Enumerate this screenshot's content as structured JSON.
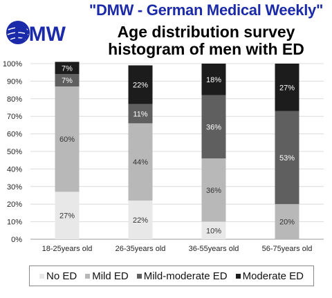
{
  "header": {
    "publisher": "\"DMW - German Medical Weekly\"",
    "logo_text": "DMW",
    "title": "Age distribution survey histogram of men with ED"
  },
  "chart_data": {
    "type": "bar",
    "stacked": true,
    "categories": [
      "18-25years old",
      "26-35years old",
      "36-55years old",
      "56-75years old"
    ],
    "series": [
      {
        "name": "No ED",
        "color": "#e8e8e8",
        "values": [
          27,
          22,
          10,
          0
        ]
      },
      {
        "name": "Mild ED",
        "color": "#b8b8b8",
        "values": [
          60,
          44,
          36,
          20
        ]
      },
      {
        "name": "Mild-moderate ED",
        "color": "#5f5f5f",
        "values": [
          7,
          11,
          36,
          53
        ]
      },
      {
        "name": "Moderate ED",
        "color": "#1c1c1c",
        "values": [
          7,
          22,
          18,
          27
        ]
      }
    ],
    "data_labels": [
      [
        "27%",
        "22%",
        "10%",
        null
      ],
      [
        "60%",
        "44%",
        "36%",
        "20%"
      ],
      [
        "7%",
        "11%",
        "36%",
        "53%"
      ],
      [
        "7%",
        "22%",
        "18%",
        "27%"
      ]
    ],
    "label_colors": [
      "#333333",
      "#333333",
      "#ffffff",
      "#ffffff"
    ],
    "ylim": [
      0,
      100
    ],
    "yticks": [
      0,
      10,
      20,
      30,
      40,
      50,
      60,
      70,
      80,
      90,
      100
    ],
    "ytick_suffix": "%",
    "grid": true,
    "legend_position": "bottom"
  }
}
